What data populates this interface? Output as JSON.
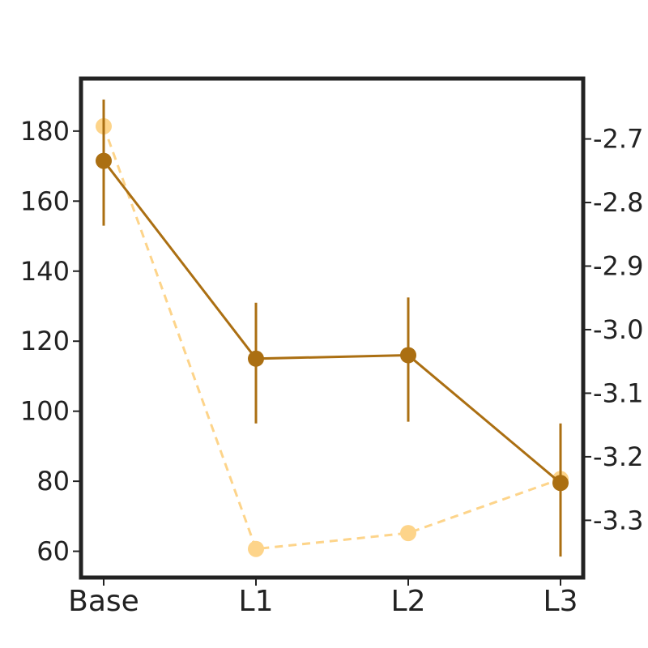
{
  "chart_data": {
    "type": "line",
    "categories": [
      "Base",
      "L1",
      "L2",
      "L3"
    ],
    "series": [
      {
        "axis": "left",
        "color": "#ab6f12",
        "style": "solid",
        "values": [
          171.5,
          115,
          116,
          79.5
        ],
        "err_low": [
          153,
          96.5,
          97,
          58.5
        ],
        "err_high": [
          189,
          131,
          132.5,
          96.5
        ]
      },
      {
        "axis": "right",
        "color": "#fdd48a",
        "style": "dashed",
        "values": [
          -2.68,
          -3.345,
          -3.32,
          -3.235
        ]
      }
    ],
    "y_left": {
      "range": [
        52.5,
        195
      ],
      "ticks": [
        "60",
        "80",
        "100",
        "120",
        "140",
        "160",
        "180"
      ]
    },
    "y_right": {
      "range": [
        -3.39,
        -2.605
      ],
      "ticks": [
        "-2.7",
        "-2.8",
        "-2.9",
        "-3.0",
        "-3.1",
        "-3.2",
        "-3.3"
      ]
    },
    "grid": false
  }
}
